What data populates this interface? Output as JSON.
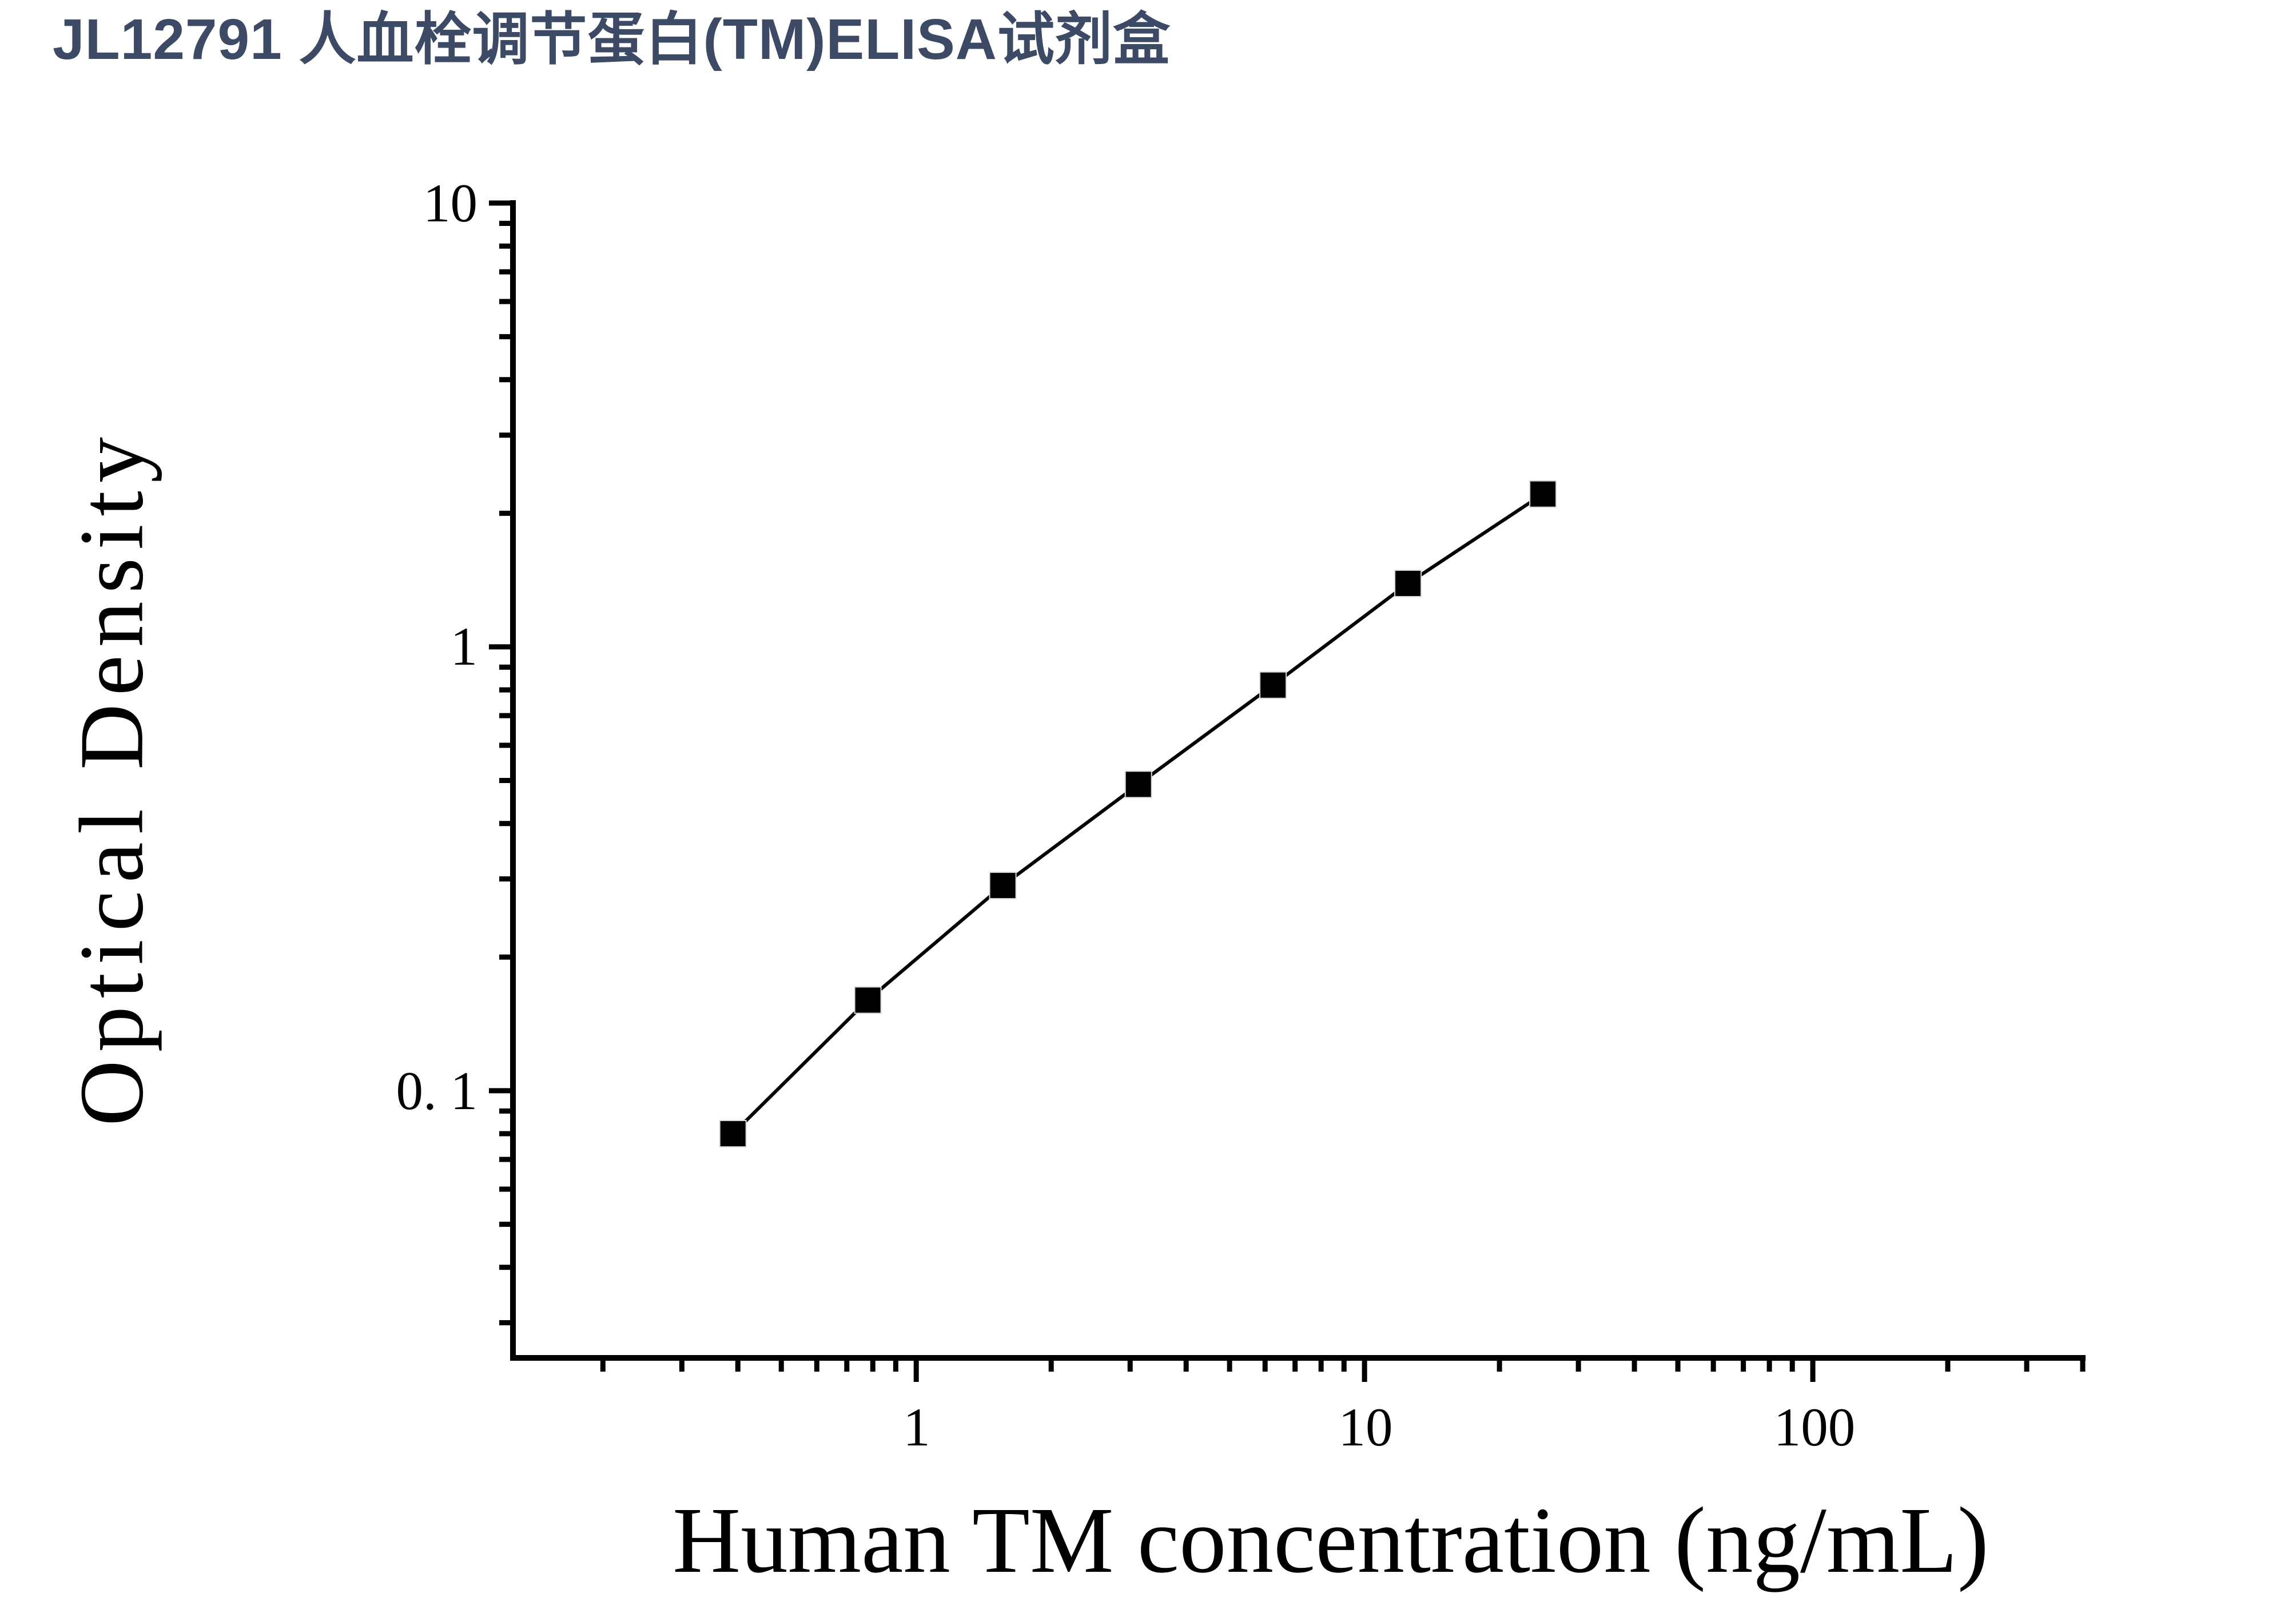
{
  "title": "JL12791 人血栓调节蛋白(TM)ELISA试剂盒",
  "colors": {
    "title": "#3d4a66",
    "axis": "#000000",
    "marker": "#000000"
  },
  "chart_data": {
    "type": "line",
    "title": "JL12791 人血栓调节蛋白(TM)ELISA试剂盒",
    "xlabel": "Human TM concentration (ng/mL)",
    "ylabel": "Optical Density",
    "x_scale": "log",
    "y_scale": "log",
    "xlim": [
      0.126,
      400
    ],
    "ylim": [
      0.025,
      10
    ],
    "grid": false,
    "legend_position": "none",
    "x_major_ticks": [
      1,
      10,
      100
    ],
    "x_major_tick_labels": [
      "1",
      "10",
      "100"
    ],
    "y_major_ticks": [
      10,
      1,
      0.1
    ],
    "y_major_tick_labels": [
      "10",
      "1",
      "0. 1"
    ],
    "series": [
      {
        "name": "standard-curve",
        "marker": "filled-square",
        "line_color": "#000000",
        "x": [
          0.39,
          0.78,
          1.56,
          3.13,
          6.25,
          12.5,
          25
        ],
        "y": [
          0.08,
          0.16,
          0.29,
          0.49,
          0.82,
          1.39,
          2.21
        ]
      }
    ]
  }
}
